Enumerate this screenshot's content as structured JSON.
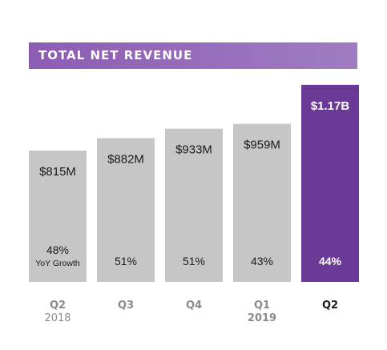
{
  "chart_data": {
    "type": "bar",
    "title": "TOTAL NET REVENUE",
    "categories": [
      "Q2",
      "Q3",
      "Q4",
      "Q1",
      "Q2"
    ],
    "category_years": [
      "2018",
      "",
      "",
      "2019",
      ""
    ],
    "values": [
      815,
      882,
      933,
      959,
      1170
    ],
    "value_labels": [
      "$815M",
      "$882M",
      "$933M",
      "$959M",
      "$1.17B"
    ],
    "growth_labels": [
      "48%",
      "51%",
      "51%",
      "43%",
      "44%"
    ],
    "growth_caption": "YoY Growth",
    "unit": "$M",
    "highlight_index": 4,
    "grid": false,
    "legend": "none"
  },
  "colors": {
    "bar": "#c6c6c6",
    "highlight": "#6b3a96",
    "text": "#1a1a1a",
    "highlight_text": "#ffffff",
    "axis_label": "#8a8a8a",
    "axis_label_highlight": "#1a1a1a",
    "banner_start": "#8c5cb3",
    "banner_end": "#a07cc2"
  }
}
